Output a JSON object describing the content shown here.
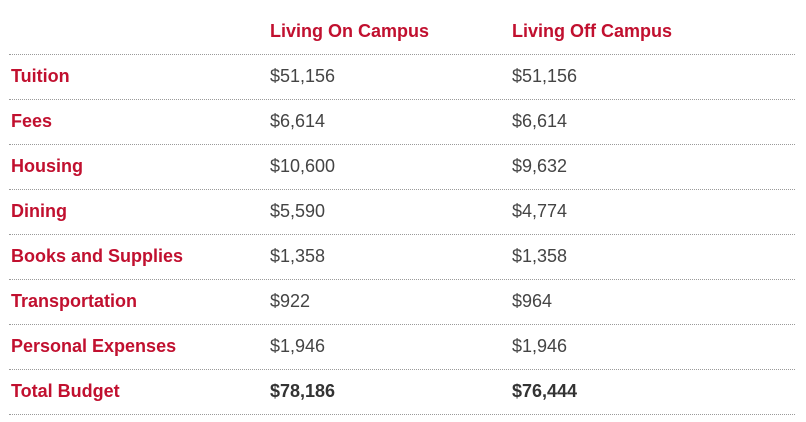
{
  "table": {
    "headers": [
      "Living On Campus",
      "Living Off Campus"
    ],
    "rows": [
      [
        "Tuition",
        "$51,156",
        "$51,156"
      ],
      [
        "Fees",
        "$6,614",
        "$6,614"
      ],
      [
        "Housing",
        "$10,600",
        "$9,632"
      ],
      [
        "Dining",
        "$5,590",
        "$4,774"
      ],
      [
        "Books and Supplies",
        "$1,358",
        "$1,358"
      ],
      [
        "Transportation",
        "$922",
        "$964"
      ],
      [
        "Personal Expenses",
        "$1,946",
        "$1,946"
      ],
      [
        "Total Budget",
        "$78,186",
        "$76,444"
      ]
    ]
  }
}
